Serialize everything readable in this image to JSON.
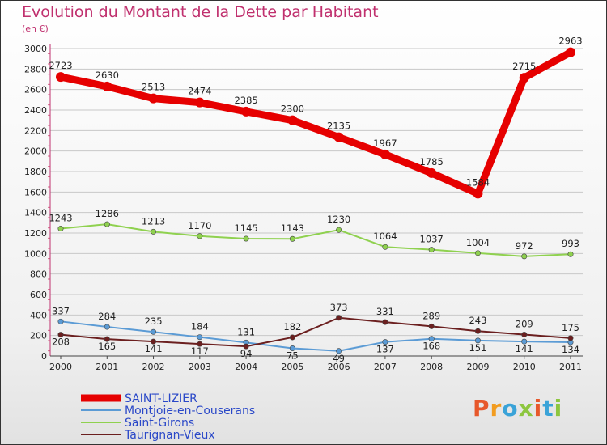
{
  "title": "Evolution du Montant de la Dette par Habitant",
  "subtitle": "(en €)",
  "brand": {
    "text": "Proxiti",
    "letter_colors": [
      "#e7582b",
      "#f29c1f",
      "#3aa3d8",
      "#8dc63f",
      "#e7582b",
      "#3aa3d8",
      "#8dc63f"
    ]
  },
  "chart_data": {
    "type": "line",
    "x": [
      "2000",
      "2001",
      "2002",
      "2003",
      "2004",
      "2005",
      "2006",
      "2007",
      "2008",
      "2009",
      "2010",
      "2011"
    ],
    "ylim": [
      0,
      3000
    ],
    "yticks": [
      "0",
      "200",
      "400",
      "600",
      "800",
      "1000",
      "1200",
      "1400",
      "1600",
      "1800",
      "2000",
      "2200",
      "2400",
      "2600",
      "2800",
      "3000"
    ],
    "grid": true,
    "legend_position": "bottom-left",
    "series": [
      {
        "name": "SAINT-LIZIER",
        "color": "#e60000",
        "values": [
          2723,
          2630,
          2513,
          2474,
          2385,
          2300,
          2135,
          1967,
          1785,
          1584,
          2715,
          2963
        ],
        "labels": [
          "2723",
          "2630",
          "2513",
          "2474",
          "2385",
          "2300",
          "2135",
          "1967",
          "1785",
          "1584",
          "2715",
          "2963"
        ]
      },
      {
        "name": "Montjoie-en-Couserans",
        "color": "#5b9bd5",
        "values": [
          337,
          284,
          235,
          184,
          131,
          75,
          49,
          137,
          168,
          151,
          141,
          134
        ],
        "labels": [
          "337",
          "284",
          "235",
          "184",
          "131",
          "75",
          "49",
          "137",
          "168",
          "151",
          "141",
          "134"
        ]
      },
      {
        "name": "Saint-Girons",
        "color": "#8fd14f",
        "values": [
          1243,
          1286,
          1213,
          1170,
          1145,
          1143,
          1230,
          1064,
          1037,
          1004,
          972,
          993
        ],
        "labels": [
          "1243",
          "1286",
          "1213",
          "1170",
          "1145",
          "1143",
          "1230",
          "1064",
          "1037",
          "1004",
          "972",
          "993"
        ]
      },
      {
        "name": "Taurignan-Vieux",
        "color": "#6b1f1f",
        "values": [
          208,
          165,
          141,
          117,
          94,
          182,
          373,
          331,
          289,
          243,
          209,
          175
        ],
        "labels": [
          "208",
          "165",
          "141",
          "117",
          "94",
          "182",
          "373",
          "331",
          "289",
          "243",
          "209",
          "175"
        ]
      }
    ]
  }
}
